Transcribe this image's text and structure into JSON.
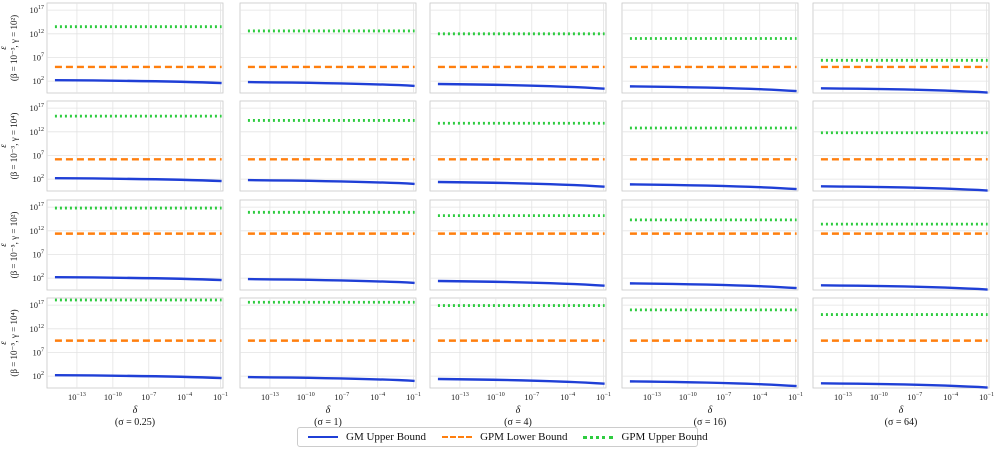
{
  "chart_data": {
    "type": "line",
    "grid": true,
    "x_scale": "log",
    "y_scale": "log",
    "xlim_exp": [
      -15.5,
      -0.8
    ],
    "ylim_exp": [
      -0.5,
      18.5
    ],
    "x_ticks": [
      {
        "exp": -13,
        "label": "10",
        "sup": "−13"
      },
      {
        "exp": -10,
        "label": "10",
        "sup": "−10"
      },
      {
        "exp": -7,
        "label": "10",
        "sup": "−7"
      },
      {
        "exp": -4,
        "label": "10",
        "sup": "−4"
      },
      {
        "exp": -1,
        "label": "10",
        "sup": "−1"
      }
    ],
    "y_ticks": [
      {
        "exp": 2,
        "label": "10",
        "sup": "2"
      },
      {
        "exp": 7,
        "label": "10",
        "sup": "7"
      },
      {
        "exp": 12,
        "label": "10",
        "sup": "12"
      },
      {
        "exp": 17,
        "label": "10",
        "sup": "17"
      }
    ],
    "xlabel": "δ",
    "ylabel_symbol": "ε",
    "columns": [
      "(σ = 0.25)",
      "(σ = 1)",
      "(σ = 4)",
      "(σ = 16)",
      "(σ = 64)"
    ],
    "rows": [
      {
        "label": "(β = 10⁻³, γ = 10²)"
      },
      {
        "label": "(β = 10⁻³, γ = 10⁴)"
      },
      {
        "label": "(β = 10⁻⁵, γ = 10²)"
      },
      {
        "label": "(β = 10⁻⁵, γ = 10⁴)"
      }
    ],
    "series": [
      {
        "name": "GM Upper Bound",
        "color": "#1f3fd6",
        "style": "solid"
      },
      {
        "name": "GPM Lower Bound",
        "color": "#ff7f0e",
        "style": "dashed"
      },
      {
        "name": "GPM Upper Bound",
        "color": "#2ecc40",
        "style": "dotted"
      }
    ],
    "panels": [
      [
        {
          "gm": [
            2.2,
            1.6
          ],
          "gpm_lower": 5.0,
          "gpm_upper": 13.5
        },
        {
          "gm": [
            1.8,
            1.0
          ],
          "gpm_lower": 5.0,
          "gpm_upper": 12.6
        },
        {
          "gm": [
            1.4,
            0.4
          ],
          "gpm_lower": 5.0,
          "gpm_upper": 12.0
        },
        {
          "gm": [
            0.9,
            -0.1
          ],
          "gpm_lower": 5.0,
          "gpm_upper": 11.0
        },
        {
          "gm": [
            0.5,
            -0.4
          ],
          "gpm_lower": 5.0,
          "gpm_upper": 6.4
        }
      ],
      [
        {
          "gm": [
            2.2,
            1.6
          ],
          "gpm_lower": 6.2,
          "gpm_upper": 15.3
        },
        {
          "gm": [
            1.8,
            1.0
          ],
          "gpm_lower": 6.2,
          "gpm_upper": 14.4
        },
        {
          "gm": [
            1.4,
            0.4
          ],
          "gpm_lower": 6.2,
          "gpm_upper": 13.8
        },
        {
          "gm": [
            0.9,
            -0.1
          ],
          "gpm_lower": 6.2,
          "gpm_upper": 12.8
        },
        {
          "gm": [
            0.5,
            -0.4
          ],
          "gpm_lower": 6.2,
          "gpm_upper": 11.8
        }
      ],
      [
        {
          "gm": [
            2.2,
            1.6
          ],
          "gpm_lower": 11.4,
          "gpm_upper": 16.8
        },
        {
          "gm": [
            1.8,
            1.0
          ],
          "gpm_lower": 11.4,
          "gpm_upper": 15.9
        },
        {
          "gm": [
            1.4,
            0.4
          ],
          "gpm_lower": 11.4,
          "gpm_upper": 15.2
        },
        {
          "gm": [
            0.9,
            -0.1
          ],
          "gpm_lower": 11.4,
          "gpm_upper": 14.3
        },
        {
          "gm": [
            0.5,
            -0.4
          ],
          "gpm_lower": 11.4,
          "gpm_upper": 13.4
        }
      ],
      [
        {
          "gm": [
            2.2,
            1.6
          ],
          "gpm_lower": 9.5,
          "gpm_upper": 18.5
        },
        {
          "gm": [
            1.8,
            1.0
          ],
          "gpm_lower": 9.5,
          "gpm_upper": 17.6
        },
        {
          "gm": [
            1.4,
            0.4
          ],
          "gpm_lower": 9.5,
          "gpm_upper": 16.9
        },
        {
          "gm": [
            0.9,
            -0.1
          ],
          "gpm_lower": 9.5,
          "gpm_upper": 16.0
        },
        {
          "gm": [
            0.5,
            -0.4
          ],
          "gpm_lower": 9.5,
          "gpm_upper": 15.0
        }
      ]
    ]
  }
}
